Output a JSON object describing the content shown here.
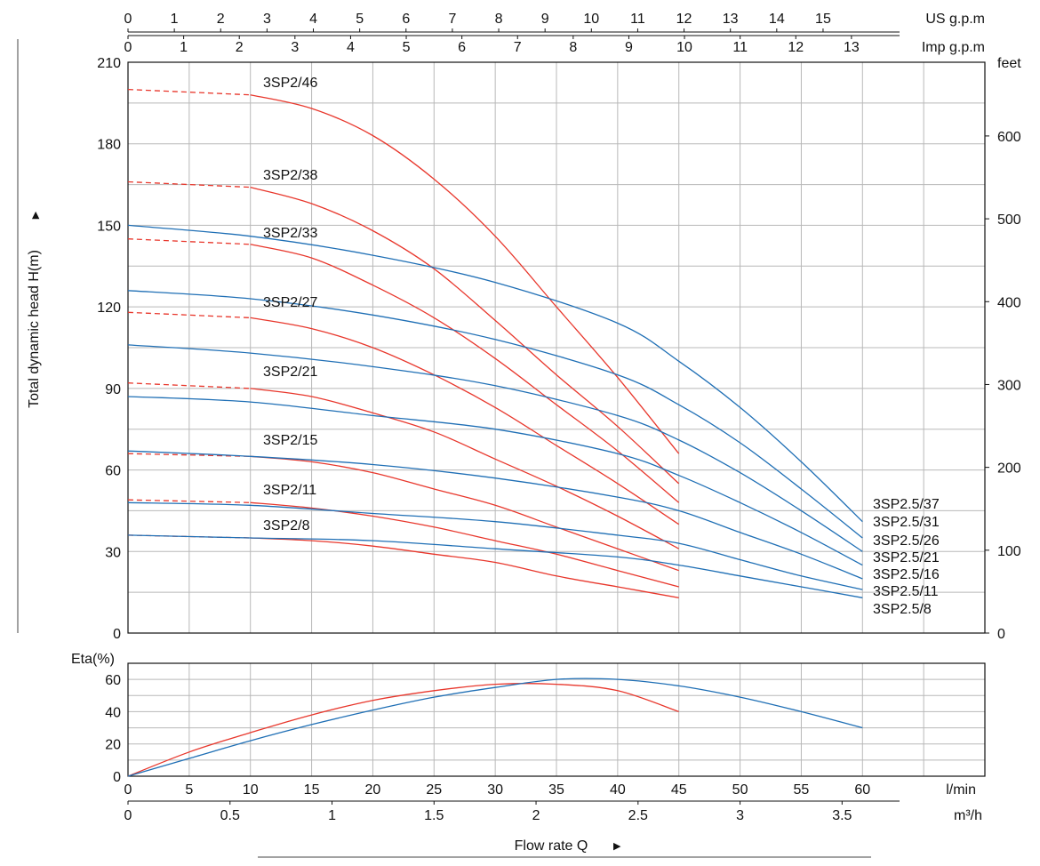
{
  "chart_data": [
    {
      "type": "line",
      "title": "",
      "ylabel": "Total dynamic head H(m)",
      "y_unit_right": "feet",
      "x_unit_lmin": "l/min",
      "x_unit_m3h": "m³/h",
      "x_unit_usgpm": "US g.p.m",
      "x_unit_impgpm": "Imp g.p.m",
      "xlim_lmin": [
        0,
        70
      ],
      "ylim": [
        0,
        210
      ],
      "grid": true,
      "x_ticks_lmin": [
        0,
        5,
        10,
        15,
        20,
        25,
        30,
        35,
        40,
        45,
        50,
        55,
        60
      ],
      "x_ticks_m3h": [
        "0",
        "0.5",
        "1",
        "1.5",
        "2",
        "2.5",
        "3",
        "3.5"
      ],
      "x_ticks_usgpm": [
        "0",
        "1",
        "2",
        "3",
        "4",
        "5",
        "6",
        "7",
        "8",
        "9",
        "10",
        "11",
        "12",
        "13",
        "14",
        "15"
      ],
      "x_ticks_impgpm": [
        "0",
        "1",
        "2",
        "3",
        "4",
        "5",
        "6",
        "7",
        "8",
        "9",
        "10",
        "11",
        "12",
        "13"
      ],
      "y_ticks": [
        "0",
        "30",
        "60",
        "90",
        "120",
        "150",
        "180",
        "210"
      ],
      "y_ticks_feet": [
        "0",
        "100",
        "200",
        "300",
        "400",
        "500",
        "600"
      ],
      "series": [
        {
          "name": "3SP2/46",
          "color": "#e8372c",
          "dashed_until_x": 10,
          "x": [
            0,
            10,
            15,
            20,
            25,
            30,
            35,
            40,
            45
          ],
          "y": [
            200,
            198,
            193,
            183,
            167,
            146,
            120,
            94,
            66
          ]
        },
        {
          "name": "3SP2/38",
          "color": "#e8372c",
          "dashed_until_x": 10,
          "x": [
            0,
            10,
            15,
            20,
            25,
            30,
            35,
            40,
            45
          ],
          "y": [
            166,
            164,
            158,
            148,
            134,
            115,
            95,
            76,
            55
          ]
        },
        {
          "name": "3SP2/33",
          "color": "#e8372c",
          "dashed_until_x": 10,
          "x": [
            0,
            10,
            15,
            20,
            25,
            30,
            35,
            40,
            45
          ],
          "y": [
            145,
            143,
            138,
            128,
            116,
            101,
            84,
            67,
            48
          ]
        },
        {
          "name": "3SP2/27",
          "color": "#e8372c",
          "dashed_until_x": 10,
          "x": [
            0,
            10,
            15,
            20,
            25,
            30,
            35,
            40,
            45
          ],
          "y": [
            118,
            116,
            112,
            105,
            95,
            83,
            69,
            55,
            40
          ]
        },
        {
          "name": "3SP2/21",
          "color": "#e8372c",
          "dashed_until_x": 10,
          "x": [
            0,
            10,
            15,
            20,
            25,
            30,
            35,
            40,
            45
          ],
          "y": [
            92,
            90,
            87,
            81,
            74,
            64,
            54,
            43,
            31
          ]
        },
        {
          "name": "3SP2/15",
          "color": "#e8372c",
          "dashed_until_x": 10,
          "x": [
            0,
            10,
            15,
            20,
            25,
            30,
            35,
            40,
            45
          ],
          "y": [
            66,
            65,
            63,
            59,
            53,
            47,
            39,
            31,
            23
          ]
        },
        {
          "name": "3SP2/11",
          "color": "#e8372c",
          "dashed_until_x": 10,
          "x": [
            0,
            10,
            15,
            20,
            25,
            30,
            35,
            40,
            45
          ],
          "y": [
            49,
            48,
            46,
            43,
            39,
            34,
            29,
            23,
            17
          ]
        },
        {
          "name": "3SP2/8",
          "color": "#e8372c",
          "dashed_until_x": 10,
          "x": [
            0,
            10,
            15,
            20,
            25,
            30,
            35,
            40,
            45
          ],
          "y": [
            36,
            35,
            34,
            32,
            29,
            26,
            21,
            17,
            13
          ]
        },
        {
          "name": "3SP2.5/37",
          "color": "#1f6fb5",
          "x": [
            0,
            10,
            20,
            30,
            40,
            45,
            50,
            55,
            60
          ],
          "y": [
            150,
            146,
            139,
            129,
            114,
            100,
            83,
            63,
            41
          ]
        },
        {
          "name": "3SP2.5/31",
          "color": "#1f6fb5",
          "x": [
            0,
            10,
            20,
            30,
            40,
            45,
            50,
            55,
            60
          ],
          "y": [
            126,
            123,
            117,
            108,
            95,
            84,
            70,
            53,
            35
          ]
        },
        {
          "name": "3SP2.5/26",
          "color": "#1f6fb5",
          "x": [
            0,
            10,
            20,
            30,
            40,
            45,
            50,
            55,
            60
          ],
          "y": [
            106,
            103,
            98,
            91,
            80,
            71,
            59,
            45,
            30
          ]
        },
        {
          "name": "3SP2.5/21",
          "color": "#1f6fb5",
          "x": [
            0,
            10,
            20,
            30,
            40,
            45,
            50,
            55,
            60
          ],
          "y": [
            87,
            85,
            80,
            75,
            66,
            58,
            48,
            37,
            25
          ]
        },
        {
          "name": "3SP2.5/16",
          "color": "#1f6fb5",
          "x": [
            0,
            10,
            20,
            30,
            40,
            45,
            50,
            55,
            60
          ],
          "y": [
            67,
            65,
            62,
            57,
            50,
            45,
            37,
            29,
            20
          ]
        },
        {
          "name": "3SP2.5/11",
          "color": "#1f6fb5",
          "x": [
            0,
            10,
            20,
            30,
            40,
            45,
            50,
            55,
            60
          ],
          "y": [
            48,
            47,
            44,
            41,
            36,
            33,
            27,
            21,
            16
          ]
        },
        {
          "name": "3SP2.5/8",
          "color": "#1f6fb5",
          "x": [
            0,
            10,
            20,
            30,
            40,
            45,
            50,
            55,
            60
          ],
          "y": [
            36,
            35,
            34,
            31,
            28,
            25,
            21,
            17,
            13
          ]
        }
      ]
    },
    {
      "type": "line",
      "title": "",
      "ylabel": "Eta(%)",
      "xlabel": "Flow rate Q",
      "ylim": [
        0,
        70
      ],
      "y_ticks": [
        "0",
        "20",
        "40",
        "60"
      ],
      "grid": true,
      "series": [
        {
          "color": "#e8372c",
          "x": [
            0,
            5,
            10,
            15,
            20,
            25,
            30,
            35,
            40,
            45
          ],
          "y": [
            0,
            15,
            27,
            38,
            47,
            53,
            57,
            57,
            53,
            40
          ]
        },
        {
          "color": "#1f6fb5",
          "x": [
            0,
            5,
            10,
            15,
            20,
            25,
            30,
            35,
            40,
            45,
            50,
            55,
            60
          ],
          "y": [
            0,
            11,
            22,
            32,
            41,
            49,
            55,
            60,
            60,
            56,
            49,
            40,
            30
          ]
        }
      ]
    }
  ]
}
